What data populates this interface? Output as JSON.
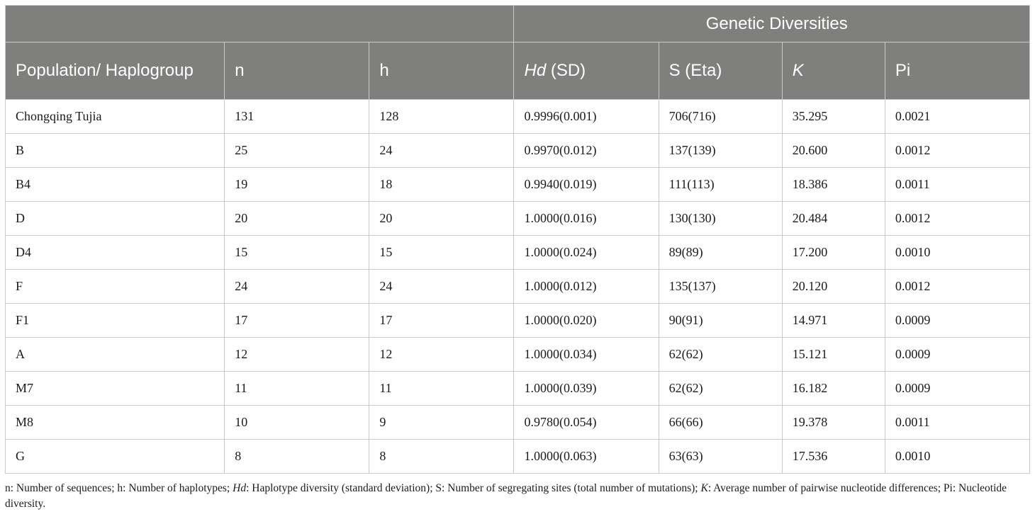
{
  "table": {
    "group_header": "Genetic Diversities",
    "headers": {
      "population": "Population/ Haplogroup",
      "n": "n",
      "h": "h",
      "hd_italic": "Hd",
      "hd_rest": " (SD)",
      "s": "S (Eta)",
      "k": "K",
      "pi": "Pi"
    },
    "rows": [
      {
        "pop": "Chongqing Tujia",
        "n": "131",
        "h": "128",
        "hd": "0.9996(0.001)",
        "s": "706(716)",
        "k": "35.295",
        "pi": "0.0021"
      },
      {
        "pop": "B",
        "n": "25",
        "h": "24",
        "hd": "0.9970(0.012)",
        "s": "137(139)",
        "k": "20.600",
        "pi": "0.0012"
      },
      {
        "pop": "B4",
        "n": "19",
        "h": "18",
        "hd": "0.9940(0.019)",
        "s": "111(113)",
        "k": "18.386",
        "pi": "0.0011"
      },
      {
        "pop": "D",
        "n": "20",
        "h": "20",
        "hd": "1.0000(0.016)",
        "s": "130(130)",
        "k": "20.484",
        "pi": "0.0012"
      },
      {
        "pop": "D4",
        "n": "15",
        "h": "15",
        "hd": "1.0000(0.024)",
        "s": "89(89)",
        "k": "17.200",
        "pi": "0.0010"
      },
      {
        "pop": "F",
        "n": "24",
        "h": "24",
        "hd": "1.0000(0.012)",
        "s": "135(137)",
        "k": "20.120",
        "pi": "0.0012"
      },
      {
        "pop": "F1",
        "n": "17",
        "h": "17",
        "hd": "1.0000(0.020)",
        "s": "90(91)",
        "k": "14.971",
        "pi": "0.0009"
      },
      {
        "pop": "A",
        "n": "12",
        "h": "12",
        "hd": "1.0000(0.034)",
        "s": "62(62)",
        "k": "15.121",
        "pi": "0.0009"
      },
      {
        "pop": "M7",
        "n": "11",
        "h": "11",
        "hd": "1.0000(0.039)",
        "s": "62(62)",
        "k": "16.182",
        "pi": "0.0009"
      },
      {
        "pop": "M8",
        "n": "10",
        "h": "9",
        "hd": "0.9780(0.054)",
        "s": "66(66)",
        "k": "19.378",
        "pi": "0.0011"
      },
      {
        "pop": "G",
        "n": "8",
        "h": "8",
        "hd": "1.0000(0.063)",
        "s": "63(63)",
        "k": "17.536",
        "pi": "0.0010"
      }
    ]
  },
  "footnote": {
    "p1": "n: Number of sequences; h: Number of haplotypes; ",
    "i1": "Hd",
    "p2": ": Haplotype diversity (standard deviation); S: Number of segregating sites (total number of mutations); ",
    "i2": "K",
    "p3": ": Average number of pairwise nucleotide differences; Pi: Nucleotide diversity."
  },
  "colors": {
    "header_bg": "#7f807e",
    "header_text": "#ffffff",
    "grid": "#c9c9c9"
  }
}
